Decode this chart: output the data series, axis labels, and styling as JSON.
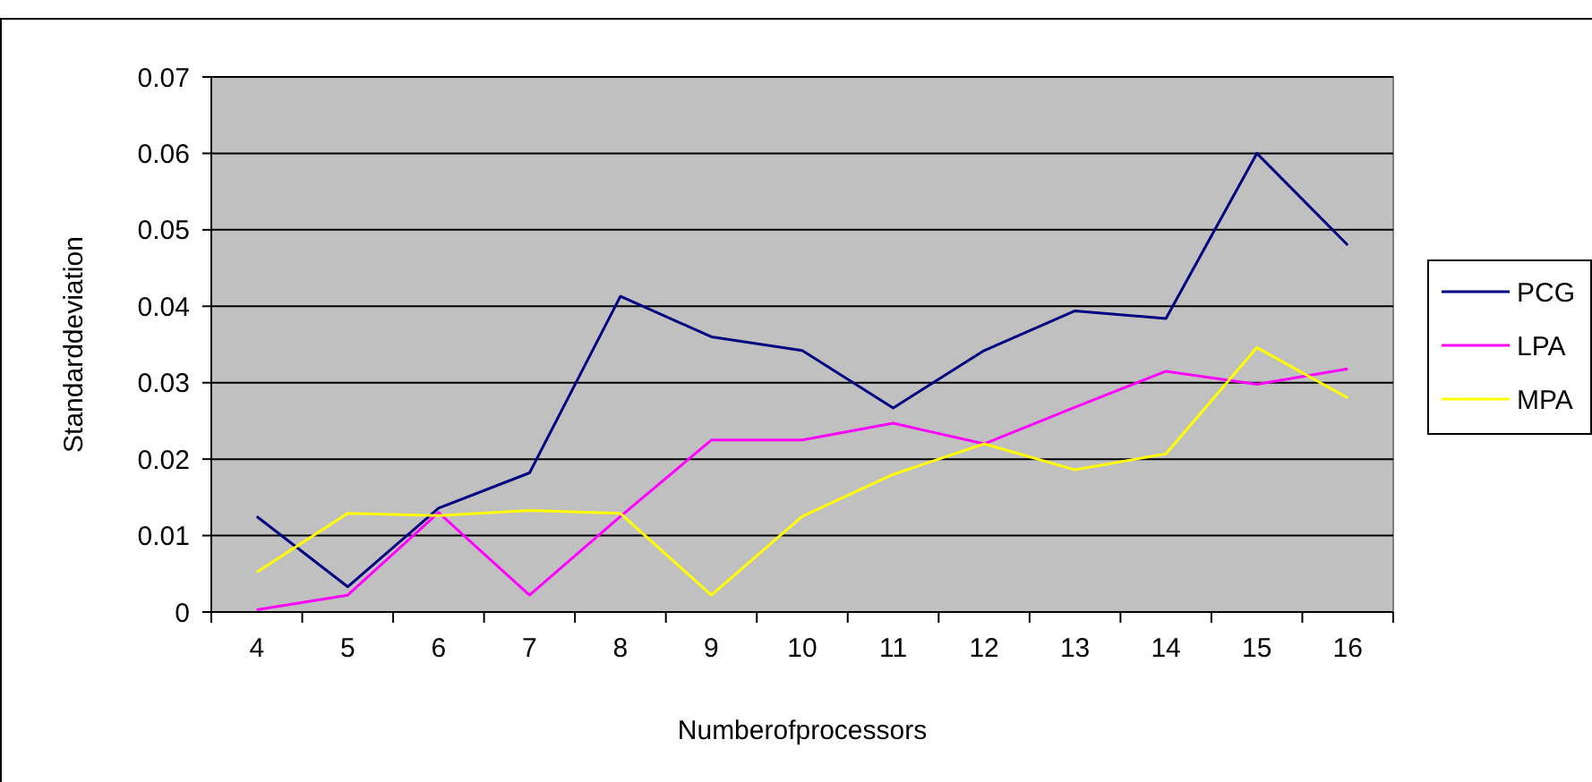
{
  "chart_data": {
    "type": "line",
    "xlabel": "Numberofprocessors",
    "ylabel": "Standarddeviation",
    "categories": [
      "4",
      "5",
      "6",
      "7",
      "8",
      "9",
      "10",
      "11",
      "12",
      "13",
      "14",
      "15",
      "16"
    ],
    "series": [
      {
        "name": "PCG",
        "color": "#000080",
        "values": [
          0.0125,
          0.0033,
          0.0136,
          0.0182,
          0.0413,
          0.036,
          0.0342,
          0.0267,
          0.0342,
          0.0394,
          0.0384,
          0.06,
          0.048
        ]
      },
      {
        "name": "LPA",
        "color": "#ff00ff",
        "values": [
          0.0003,
          0.0022,
          0.013,
          0.0022,
          0.0125,
          0.0225,
          0.0225,
          0.0247,
          0.022,
          0.0268,
          0.0315,
          0.0298,
          0.0318
        ]
      },
      {
        "name": "MPA",
        "color": "#ffff00",
        "values": [
          0.0052,
          0.0129,
          0.0126,
          0.0133,
          0.0129,
          0.0022,
          0.0125,
          0.018,
          0.022,
          0.0186,
          0.0207,
          0.0346,
          0.028
        ]
      }
    ],
    "ylim": [
      0,
      0.07
    ],
    "yticks": [
      0,
      0.01,
      0.02,
      0.03,
      0.04,
      0.05,
      0.06,
      0.07
    ],
    "grid": "y",
    "legend": "right",
    "marker": "none",
    "line_style": "solid"
  }
}
